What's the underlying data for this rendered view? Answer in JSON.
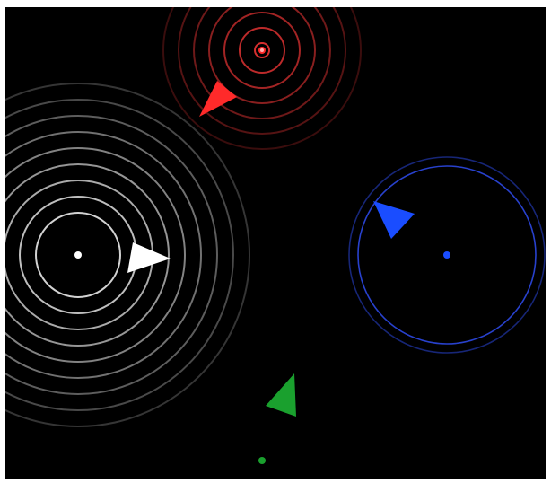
{
  "game": {
    "background_color": "#000000",
    "players": [
      {
        "id": "red",
        "color": "#ff2a2a",
        "ring_color": "#e03232",
        "emitter": "pulse-emitter-red",
        "ring_count": 7,
        "has_pulse_rings": true
      },
      {
        "id": "white",
        "color": "#ffffff",
        "ring_color": "#dddddd",
        "emitter": "pulse-emitter-white",
        "ring_count": 9,
        "has_pulse_rings": true
      },
      {
        "id": "blue",
        "color": "#1a4dff",
        "ring_color": "#2a45d8",
        "emitter": "pulse-emitter-blue",
        "ring_count": 2,
        "has_pulse_rings": true
      },
      {
        "id": "green",
        "color": "#1aa02e",
        "ring_color": "#1aa02e",
        "emitter": "pulse-emitter-green",
        "ring_count": 0,
        "has_pulse_rings": false
      }
    ]
  }
}
